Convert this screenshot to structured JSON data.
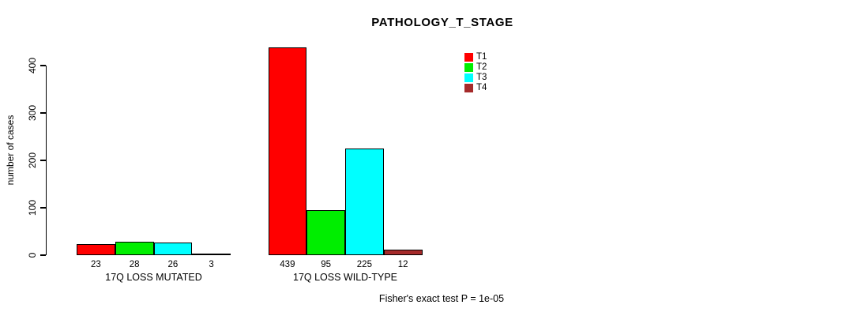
{
  "chart_data": {
    "type": "bar",
    "title": "PATHOLOGY_T_STAGE",
    "ylabel": "number of cases",
    "xlabel": "",
    "ylim": [
      0,
      440
    ],
    "yticks": [
      0,
      100,
      200,
      300,
      400
    ],
    "grid": false,
    "legend_position": "top-right",
    "categories": [
      "17Q LOSS MUTATED",
      "17Q LOSS WILD-TYPE"
    ],
    "series": [
      {
        "name": "T1",
        "color": "#FF0000",
        "values": [
          23,
          439
        ]
      },
      {
        "name": "T2",
        "color": "#00EE00",
        "values": [
          28,
          95
        ]
      },
      {
        "name": "T3",
        "color": "#00FFFF",
        "values": [
          26,
          225
        ]
      },
      {
        "name": "T4",
        "color": "#A52A2A",
        "values": [
          3,
          12
        ]
      }
    ],
    "bar_value_labels": {
      "17Q LOSS MUTATED": [
        23,
        28,
        26,
        3
      ],
      "17Q LOSS WILD-TYPE": [
        439,
        95,
        225,
        12
      ]
    },
    "annotation": "Fisher's exact test P = 1e-05"
  },
  "colors": {
    "axis": "#000000",
    "text": "#000000",
    "background": "#FFFFFF",
    "bar_border": "#000000"
  }
}
